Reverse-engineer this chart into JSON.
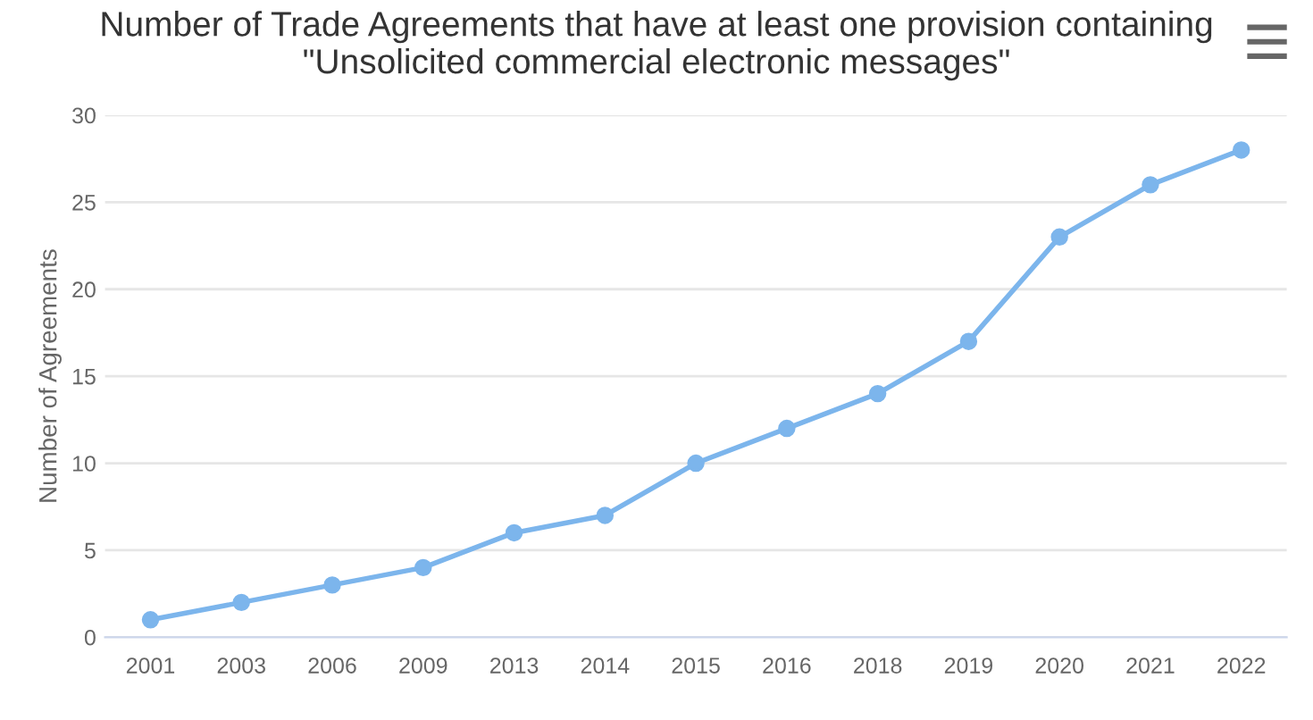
{
  "chart_data": {
    "type": "line",
    "title": "Number of Trade Agreements that have at least one provision containing\n\"Unsolicited commercial electronic messages\"",
    "ylabel": "Number of Agreements",
    "categories": [
      "2001",
      "2003",
      "2006",
      "2009",
      "2013",
      "2014",
      "2015",
      "2016",
      "2018",
      "2019",
      "2020",
      "2021",
      "2022"
    ],
    "series": [
      {
        "color": "#7cb5ec",
        "values": [
          1,
          2,
          3,
          4,
          6,
          7,
          10,
          12,
          14,
          17,
          23,
          26,
          28
        ]
      }
    ],
    "ylim": [
      0,
      30
    ],
    "yticks": [
      0,
      5,
      10,
      15,
      20,
      25,
      30
    ],
    "grid": "y",
    "marker": "circle",
    "line_style": "solid"
  }
}
